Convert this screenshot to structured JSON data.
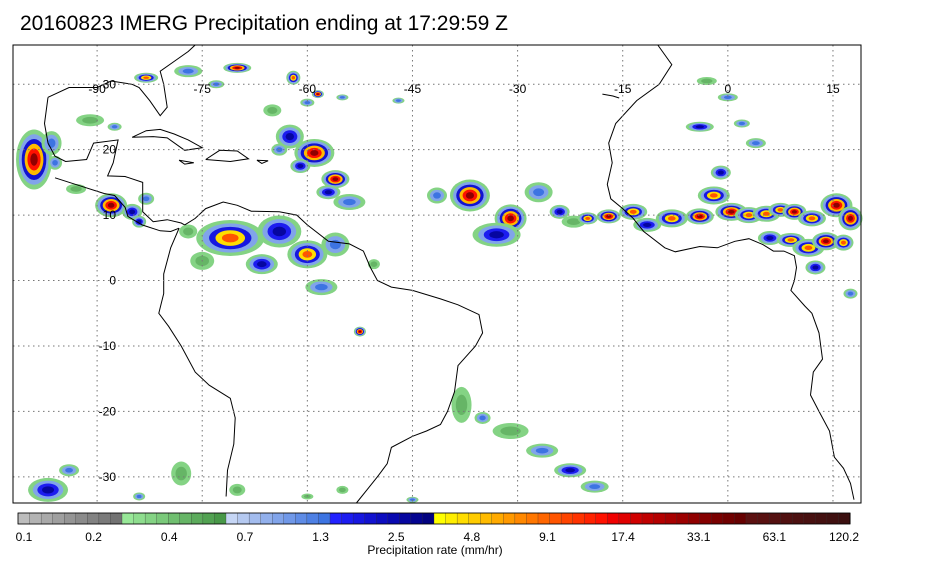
{
  "title": "20160823 IMERG Precipitation ending at 17:29:59 Z",
  "map": {
    "lon_labels": [
      "-90",
      "-75",
      "-60",
      "-45",
      "-30",
      "-15",
      "0",
      "15"
    ],
    "lat_labels": [
      "30",
      "20",
      "10",
      "0",
      "-10",
      "-20",
      "-30"
    ],
    "lon_values": [
      -90,
      -75,
      -60,
      -45,
      -30,
      -15,
      0,
      15
    ],
    "lat_values": [
      30,
      20,
      10,
      0,
      -10,
      -20,
      -30
    ],
    "lon_range": [
      -102,
      19
    ],
    "lat_range": [
      36,
      -34
    ],
    "coastline_color": "#000000",
    "grid_style": "dotted"
  },
  "colorbar": {
    "label": "Precipitation rate (mm/hr)",
    "tick_labels": [
      "0.1",
      "0.2",
      "0.4",
      "0.7",
      "1.3",
      "2.5",
      "4.8",
      "9.1",
      "17.4",
      "33.1",
      "63.1",
      "120.2"
    ],
    "colors": [
      "#bdbdbd",
      "#b3b3b3",
      "#a9a9a9",
      "#9f9f9f",
      "#959595",
      "#8b8b8b",
      "#828282",
      "#7a7a7a",
      "#727272",
      "#98e898",
      "#8edd8e",
      "#84d384",
      "#7ac97a",
      "#70bf70",
      "#66b566",
      "#5cab5c",
      "#52a252",
      "#489848",
      "#c6d6f5",
      "#b5c9f0",
      "#a3bcee",
      "#92b0ec",
      "#81a4ea",
      "#7098e8",
      "#5f8ce6",
      "#4e80e4",
      "#3d74e2",
      "#2222ff",
      "#1c1cf0",
      "#1717e0",
      "#1212d0",
      "#0d0dc0",
      "#0909b0",
      "#0606a0",
      "#040490",
      "#020280",
      "#ffff00",
      "#ffee00",
      "#ffdd00",
      "#ffcc00",
      "#ffbb00",
      "#ffaa00",
      "#ff9900",
      "#ff8800",
      "#ff7700",
      "#ff6600",
      "#ff5500",
      "#ff4400",
      "#ff3300",
      "#ff2200",
      "#ff1100",
      "#f00000",
      "#e00000",
      "#d00000",
      "#c00000",
      "#b40000",
      "#a80000",
      "#9c0000",
      "#900000",
      "#850000",
      "#7a0000",
      "#700000",
      "#660000",
      "#5c1010",
      "#581010",
      "#541010",
      "#501010",
      "#4c1010",
      "#481010",
      "#441010",
      "#401010",
      "#3c1010"
    ]
  }
}
